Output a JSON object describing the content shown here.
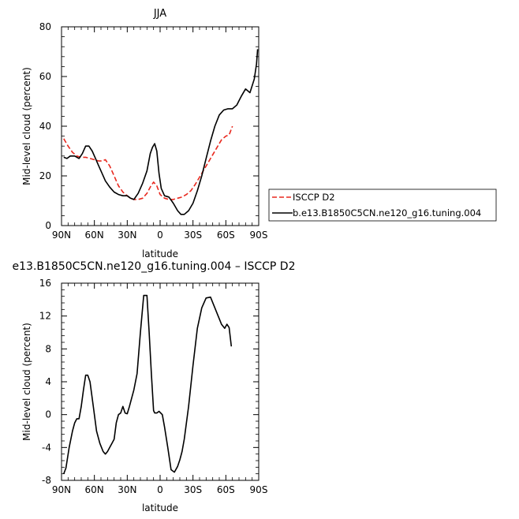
{
  "chart_data": [
    {
      "type": "line",
      "title": "JJA",
      "xlabel": "latitude",
      "ylabel": "Mid-level cloud (percent)",
      "xlim": [
        90,
        -90
      ],
      "ylim": [
        0,
        80
      ],
      "x_ticks": [
        90,
        60,
        30,
        0,
        -30,
        -60,
        -90
      ],
      "x_tick_labels": [
        "90N",
        "60N",
        "30N",
        "0",
        "30S",
        "60S",
        "90S"
      ],
      "y_ticks": [
        0,
        20,
        40,
        60,
        80
      ],
      "y_tick_labels": [
        "0",
        "20",
        "40",
        "60",
        "80"
      ],
      "legend_position": "right",
      "series": [
        {
          "name": "ISCCP D2",
          "color": "#e8281e",
          "style": "dashed",
          "x": [
            88,
            84,
            80,
            76,
            72,
            68,
            64,
            60,
            56,
            53,
            50,
            46,
            42,
            38,
            34,
            30,
            27,
            24,
            20,
            16,
            12,
            9,
            6,
            3,
            0,
            -4,
            -8,
            -12,
            -16,
            -20,
            -24,
            -28,
            -32,
            -36,
            -40,
            -44,
            -48,
            -52,
            -56,
            -60,
            -63,
            -66
          ],
          "y": [
            35,
            32,
            29.5,
            28,
            27.5,
            27.5,
            27,
            26.5,
            26,
            26,
            26.5,
            24,
            20,
            16,
            13.5,
            12,
            11,
            10.5,
            10.5,
            11,
            13,
            15.5,
            17.5,
            16,
            12.5,
            11,
            10.5,
            10.5,
            11,
            11.5,
            12.5,
            14,
            16.5,
            19.5,
            22.5,
            25.5,
            28.5,
            31.5,
            34.5,
            36,
            36.5,
            40
          ]
        },
        {
          "name": "b.e13.B1850C5CN.ne120_g16.tuning.004",
          "color": "#000000",
          "style": "solid",
          "x": [
            88,
            85,
            82,
            78,
            74,
            71,
            68,
            65,
            62,
            59,
            56,
            53,
            50,
            46,
            42,
            38,
            34,
            30,
            27,
            24,
            20,
            16,
            12,
            9,
            7,
            5,
            3,
            1,
            -1,
            -4,
            -8,
            -12,
            -16,
            -19,
            -22,
            -26,
            -30,
            -34,
            -38,
            -42,
            -46,
            -50,
            -54,
            -58,
            -62,
            -66,
            -70,
            -74,
            -78,
            -82,
            -86,
            -88,
            -89
          ],
          "y": [
            27.5,
            27,
            28,
            28,
            27,
            29,
            32,
            32,
            30,
            27,
            24,
            21,
            18,
            15.5,
            13.5,
            12.5,
            12,
            12,
            11,
            10.5,
            13,
            17,
            22,
            29,
            31.5,
            33,
            30,
            21,
            15,
            12,
            11.5,
            9,
            6,
            4.5,
            4.5,
            6,
            9,
            14,
            20,
            27,
            34,
            40,
            44.5,
            46.5,
            47,
            47,
            48.5,
            52,
            55,
            53.5,
            59,
            65,
            71
          ]
        }
      ]
    },
    {
      "type": "line",
      "title": "e13.B1850C5CN.ne120_g16.tuning.004 – ISCCP D2",
      "xlabel": "latitude",
      "ylabel": "Mid-level cloud (percent)",
      "xlim": [
        90,
        -90
      ],
      "ylim": [
        -8,
        16
      ],
      "x_ticks": [
        90,
        60,
        30,
        0,
        -30,
        -60,
        -90
      ],
      "x_tick_labels": [
        "90N",
        "60N",
        "30N",
        "0",
        "30S",
        "60S",
        "90S"
      ],
      "y_ticks": [
        -8,
        -4,
        0,
        4,
        8,
        12,
        16
      ],
      "y_tick_labels": [
        "-8",
        "-4",
        "0",
        "4",
        "8",
        "12",
        "16"
      ],
      "series": [
        {
          "color": "#000000",
          "style": "solid",
          "x": [
            88,
            86,
            83,
            80,
            78,
            76,
            74,
            72,
            70,
            68,
            66,
            64,
            61,
            58,
            55,
            52,
            50,
            48,
            46,
            44,
            42,
            40,
            38,
            36,
            34,
            32,
            30,
            28,
            26,
            24,
            21,
            18,
            15,
            12,
            10,
            8,
            6,
            5,
            3,
            1,
            -2,
            -4,
            -7,
            -10,
            -13,
            -16,
            -18,
            -20,
            -22,
            -26,
            -30,
            -34,
            -38,
            -42,
            -46,
            -50,
            -53,
            -56,
            -59,
            -61,
            -63,
            -65
          ],
          "y": [
            -7.2,
            -6.5,
            -4,
            -2,
            -1,
            -0.5,
            -0.5,
            1,
            3,
            4.8,
            4.8,
            4,
            1,
            -2,
            -3.5,
            -4.5,
            -4.8,
            -4.5,
            -4,
            -3.5,
            -3,
            -1,
            0,
            0.2,
            1,
            0.2,
            0.1,
            1,
            2,
            3,
            5,
            10,
            14.5,
            14.5,
            10,
            5,
            0.5,
            0.2,
            0.2,
            0.4,
            0,
            -1.5,
            -4,
            -6.7,
            -7,
            -6.3,
            -5.5,
            -4.5,
            -3,
            1,
            6,
            10.5,
            13,
            14.2,
            14.3,
            13,
            12,
            11,
            10.5,
            11,
            10.6,
            8.3
          ]
        }
      ]
    }
  ]
}
